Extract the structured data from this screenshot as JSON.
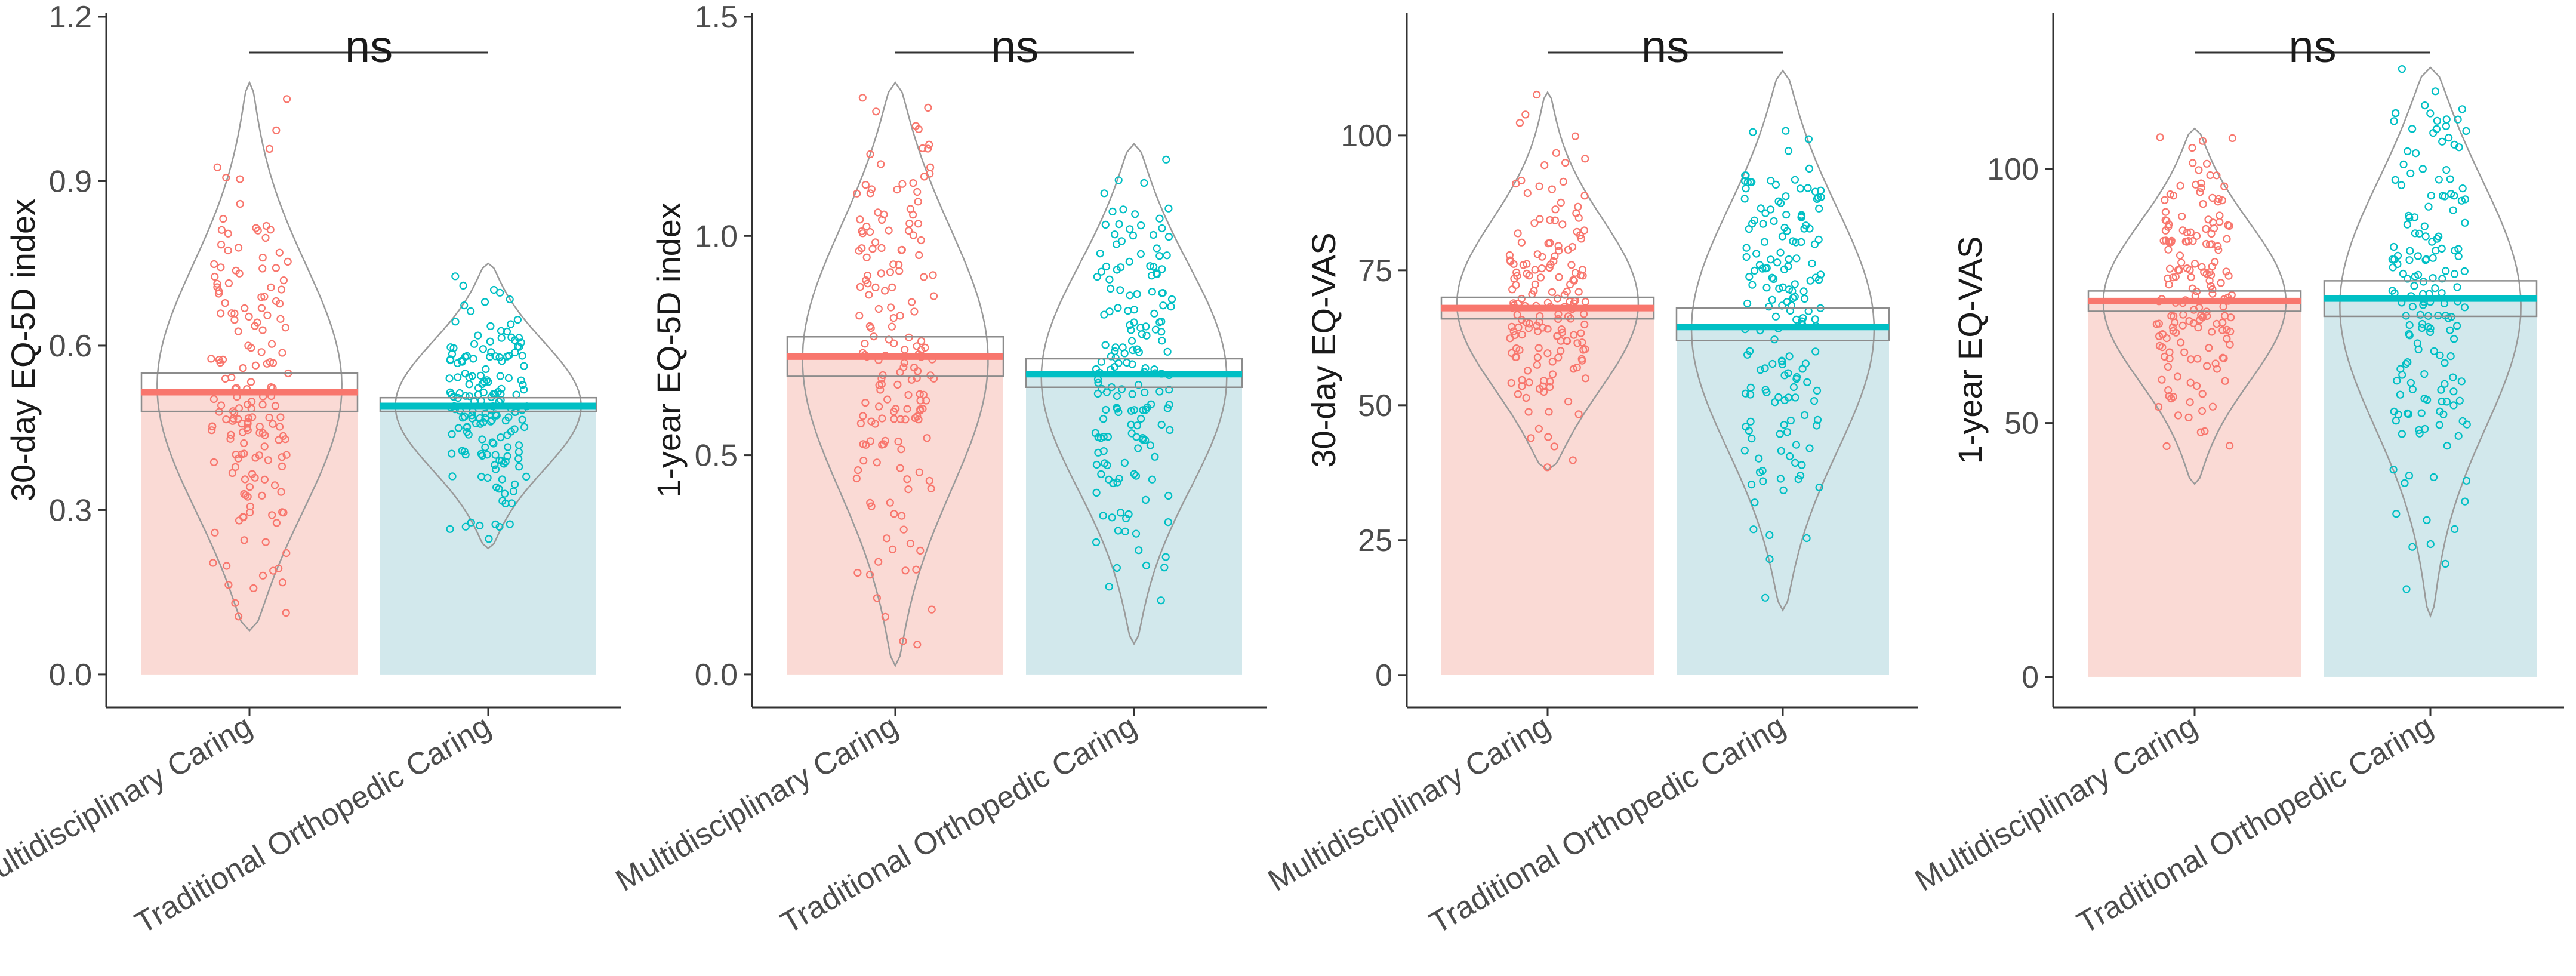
{
  "colors": {
    "multi": "#F8766D",
    "trad": "#00BFC4",
    "multi_bar": "#FADAD5",
    "trad_bar": "#D2E8EC",
    "violin": "#9a9a9a",
    "axis": "#333333"
  },
  "chart_data": [
    {
      "type": "bar",
      "subtype": "pirate-plot (bar + violin + jittered points)",
      "ylabel": "30-day EQ-5D index",
      "categories": [
        "Multidisciplinary Caring",
        "Traditional Orthopedic Caring"
      ],
      "means": [
        0.515,
        0.49
      ],
      "ci": [
        [
          0.48,
          0.55
        ],
        [
          0.48,
          0.505
        ]
      ],
      "range": [
        [
          0.08,
          1.08
        ],
        [
          0.23,
          0.75
        ]
      ],
      "ylim": [
        -0.06,
        1.2
      ],
      "yticks": [
        0.0,
        0.3,
        0.6,
        0.9,
        1.2
      ],
      "ytick_labels": [
        "0.0",
        "0.3",
        "0.6",
        "0.9",
        "1.2"
      ],
      "significance": "ns"
    },
    {
      "type": "bar",
      "subtype": "pirate-plot (bar + violin + jittered points)",
      "ylabel": "1-year EQ-5D index",
      "categories": [
        "Multidisciplinary Caring",
        "Traditional Orthopedic Caring"
      ],
      "means": [
        0.725,
        0.685
      ],
      "ci": [
        [
          0.68,
          0.77
        ],
        [
          0.655,
          0.72
        ]
      ],
      "range": [
        [
          0.02,
          1.35
        ],
        [
          0.07,
          1.21
        ]
      ],
      "ylim": [
        -0.075,
        1.5
      ],
      "yticks": [
        0.0,
        0.5,
        1.0,
        1.5
      ],
      "ytick_labels": [
        "0.0",
        "0.5",
        "1.0",
        "1.5"
      ],
      "significance": "ns"
    },
    {
      "type": "bar",
      "subtype": "pirate-plot (bar + violin + jittered points)",
      "ylabel": "30-day EQ-VAS",
      "categories": [
        "Multidisciplinary Caring",
        "Traditional Orthopedic Caring"
      ],
      "means": [
        68,
        64.5
      ],
      "ci": [
        [
          66,
          70
        ],
        [
          62,
          68
        ]
      ],
      "range": [
        [
          38,
          108
        ],
        [
          12,
          112
        ]
      ],
      "ylim": [
        -6,
        122
      ],
      "yticks": [
        0,
        25,
        50,
        75,
        100
      ],
      "ytick_labels": [
        "0",
        "25",
        "50",
        "75",
        "100"
      ],
      "significance": "ns"
    },
    {
      "type": "bar",
      "subtype": "pirate-plot (bar + violin + jittered points)",
      "ylabel": "1-year EQ-VAS",
      "categories": [
        "Multidisciplinary Caring",
        "Traditional Orthopedic Caring"
      ],
      "means": [
        74,
        74.5
      ],
      "ci": [
        [
          72,
          76
        ],
        [
          71,
          78
        ]
      ],
      "range": [
        [
          38,
          108
        ],
        [
          12,
          120
        ]
      ],
      "ylim": [
        -6,
        130
      ],
      "yticks": [
        0,
        50,
        100
      ],
      "ytick_labels": [
        "0",
        "50",
        "100"
      ],
      "significance": "ns"
    }
  ]
}
